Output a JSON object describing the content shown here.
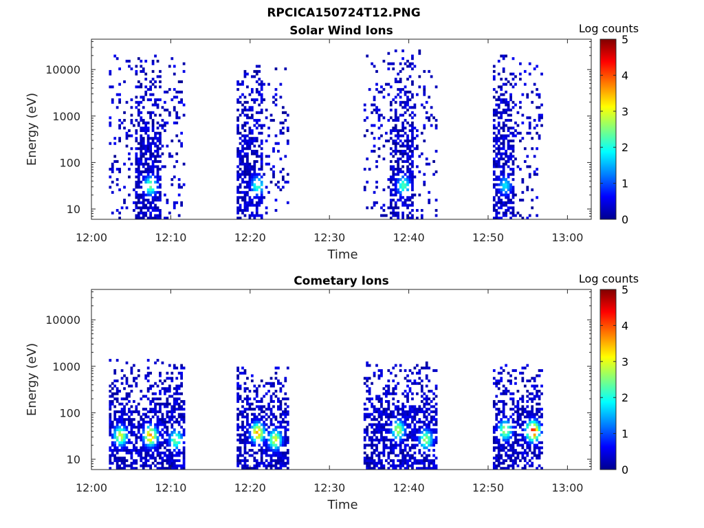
{
  "figure": {
    "title": "RPCICA150724T12.PNG"
  },
  "chart_data": [
    {
      "type": "heatmap",
      "title": "Solar Wind Ions",
      "xlabel": "Time",
      "ylabel": "Energy (eV)",
      "x_ticks": [
        "12:00",
        "12:10",
        "12:20",
        "12:30",
        "12:40",
        "12:50",
        "13:00"
      ],
      "y_ticks": [
        "10",
        "100",
        "1000",
        "10000"
      ],
      "y_scale": "log",
      "xlim": [
        "12:00",
        "13:03"
      ],
      "ylim": [
        6,
        45000
      ],
      "colorbar": {
        "label": "Log counts",
        "ticks": [
          "0",
          "1",
          "2",
          "3",
          "4",
          "5"
        ],
        "range": [
          0,
          5
        ],
        "colormap": "jet"
      },
      "clusters": [
        {
          "t_start_min": 2.2,
          "t_end_min": 11.7,
          "core_start_min": 5.2,
          "core_end_min": 8.5,
          "e_min": 6,
          "e_max": 20000,
          "scatter_min": 300,
          "density": 0.45,
          "peaks": [
            {
              "t_min": 7.3,
              "e": 30,
              "log_counts": 2.5
            }
          ]
        },
        {
          "t_start_min": 18.3,
          "t_end_min": 24.8,
          "core_start_min": 18.3,
          "core_end_min": 21.5,
          "e_min": 6,
          "e_max": 12000,
          "scatter_min": 300,
          "density": 0.45,
          "peaks": [
            {
              "t_min": 20.8,
              "e": 30,
              "log_counts": 2.2
            }
          ]
        },
        {
          "t_start_min": 34.3,
          "t_end_min": 43.3,
          "core_start_min": 37.5,
          "core_end_min": 40.5,
          "e_min": 6,
          "e_max": 25000,
          "scatter_min": 300,
          "density": 0.45,
          "peaks": [
            {
              "t_min": 39.2,
              "e": 30,
              "log_counts": 2.3
            }
          ]
        },
        {
          "t_start_min": 50.6,
          "t_end_min": 56.7,
          "core_start_min": 50.6,
          "core_end_min": 53.2,
          "e_min": 6,
          "e_max": 20000,
          "scatter_min": 300,
          "density": 0.45,
          "peaks": [
            {
              "t_min": 52.0,
              "e": 30,
              "log_counts": 1.8
            }
          ]
        }
      ]
    },
    {
      "type": "heatmap",
      "title": "Cometary Ions",
      "xlabel": "Time",
      "ylabel": "Energy (eV)",
      "x_ticks": [
        "12:00",
        "12:10",
        "12:20",
        "12:30",
        "12:40",
        "12:50",
        "13:00"
      ],
      "y_ticks": [
        "10",
        "100",
        "1000",
        "10000"
      ],
      "y_scale": "log",
      "xlim": [
        "12:00",
        "13:03"
      ],
      "ylim": [
        6,
        45000
      ],
      "colorbar": {
        "label": "Log counts",
        "ticks": [
          "0",
          "1",
          "2",
          "3",
          "4",
          "5"
        ],
        "range": [
          0,
          5
        ],
        "colormap": "jet"
      },
      "clusters": [
        {
          "t_start_min": 2.2,
          "t_end_min": 11.7,
          "core_start_min": 2.2,
          "core_end_min": 11.7,
          "e_min": 6,
          "e_max": 1400,
          "scatter_min": 120,
          "density": 0.4,
          "peaks": [
            {
              "t_min": 3.5,
              "e": 30,
              "log_counts": 3.0
            },
            {
              "t_min": 7.3,
              "e": 30,
              "log_counts": 3.7
            },
            {
              "t_min": 10.5,
              "e": 25,
              "log_counts": 2.5
            }
          ]
        },
        {
          "t_start_min": 18.3,
          "t_end_min": 24.8,
          "core_start_min": 18.3,
          "core_end_min": 24.8,
          "e_min": 6,
          "e_max": 900,
          "scatter_min": 120,
          "density": 0.4,
          "peaks": [
            {
              "t_min": 20.8,
              "e": 35,
              "log_counts": 3.6
            },
            {
              "t_min": 23.0,
              "e": 25,
              "log_counts": 3.0
            }
          ]
        },
        {
          "t_start_min": 34.3,
          "t_end_min": 43.3,
          "core_start_min": 34.3,
          "core_end_min": 43.3,
          "e_min": 6,
          "e_max": 1200,
          "scatter_min": 120,
          "density": 0.4,
          "peaks": [
            {
              "t_min": 38.5,
              "e": 40,
              "log_counts": 2.8
            },
            {
              "t_min": 42.0,
              "e": 25,
              "log_counts": 2.7
            }
          ]
        },
        {
          "t_start_min": 50.6,
          "t_end_min": 56.7,
          "core_start_min": 50.6,
          "core_end_min": 56.7,
          "e_min": 6,
          "e_max": 1000,
          "scatter_min": 120,
          "density": 0.4,
          "peaks": [
            {
              "t_min": 52.0,
              "e": 40,
              "log_counts": 2.8
            },
            {
              "t_min": 55.5,
              "e": 38,
              "log_counts": 4.3
            }
          ]
        }
      ]
    }
  ]
}
